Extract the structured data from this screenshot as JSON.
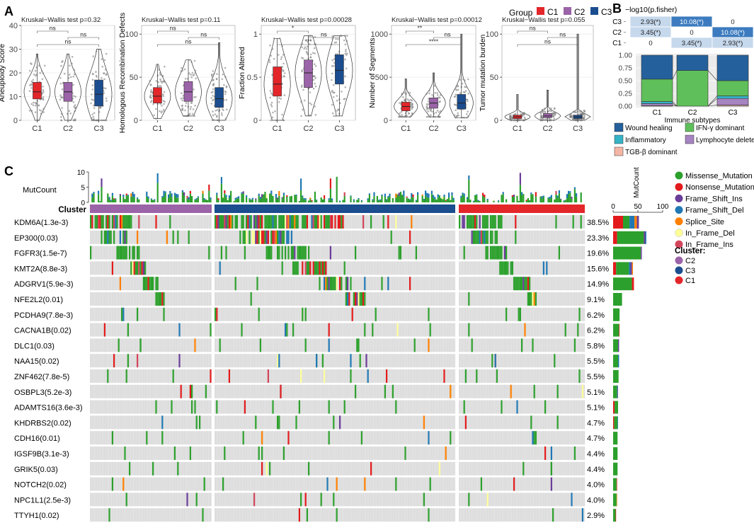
{
  "panel_labels": {
    "a": "A",
    "b": "B",
    "c": "C"
  },
  "colors": {
    "C1": "#e3262a",
    "C2": "#9b63a8",
    "C3": "#1b4d8f",
    "grid": "#ebebeb",
    "axis": "#333333",
    "missense": "#2ca02c",
    "nonsense": "#e31a1c",
    "fs_ins": "#6a3d9a",
    "fs_del": "#1f78b4",
    "splice": "#ff7f00",
    "inf_del": "#ffff99",
    "inf_ins": "#d3455b",
    "wound": "#24619c",
    "ifng": "#5fbf5a",
    "inflam": "#35b4c7",
    "lymph": "#a683c1",
    "tgb": "#f4b6a4",
    "cell_bg": "#d9d9d9"
  },
  "legend_group": {
    "title": "Group",
    "items": [
      "C1",
      "C2",
      "C3"
    ]
  },
  "chart_data": [
    {
      "type": "violin",
      "id": "aneuploidy",
      "title": "Kruskal−Wallis test p=0.32",
      "ylabel": "Aneuploidy Score",
      "categories": [
        "C1",
        "C2",
        "C3"
      ],
      "ylim": [
        0,
        40
      ],
      "yticks": [
        0,
        10,
        20,
        30,
        40
      ],
      "box": [
        {
          "q1": 9,
          "median": 12,
          "q3": 16
        },
        {
          "q1": 8,
          "median": 12,
          "q3": 16
        },
        {
          "q1": 6,
          "median": 11,
          "q3": 17
        }
      ],
      "whisker": [
        [
          0,
          28
        ],
        [
          0,
          28
        ],
        [
          0,
          30
        ]
      ],
      "significance": [
        "ns",
        "ns",
        "ns"
      ]
    },
    {
      "type": "violin",
      "id": "hrd",
      "title": "Kruskal−Wallis test p=0.11",
      "ylabel": "Homologous Recombination Defects",
      "categories": [
        "C1",
        "C2",
        "C3"
      ],
      "ylim": [
        0,
        110
      ],
      "yticks": [
        0,
        50,
        100
      ],
      "box": [
        {
          "q1": 20,
          "median": 28,
          "q3": 38
        },
        {
          "q1": 22,
          "median": 33,
          "q3": 45
        },
        {
          "q1": 15,
          "median": 25,
          "q3": 38
        }
      ],
      "whisker": [
        [
          2,
          65
        ],
        [
          5,
          70
        ],
        [
          0,
          90
        ]
      ],
      "significance": [
        "ns",
        "ns",
        "ns"
      ]
    },
    {
      "type": "violin",
      "id": "fraction",
      "title": "Kruskal−Wallis test p=0.00028",
      "ylabel": "Fraction Altered",
      "categories": [
        "C1",
        "C2",
        "C3"
      ],
      "ylim": [
        0,
        1.1
      ],
      "yticks": [
        0.0,
        0.5,
        1.0
      ],
      "box": [
        {
          "q1": 0.28,
          "median": 0.42,
          "q3": 0.62
        },
        {
          "q1": 0.38,
          "median": 0.55,
          "q3": 0.7
        },
        {
          "q1": 0.42,
          "median": 0.58,
          "q3": 0.76
        }
      ],
      "whisker": [
        [
          0.0,
          0.95
        ],
        [
          0.05,
          0.98
        ],
        [
          0.05,
          0.98
        ]
      ],
      "significance": [
        "*",
        "ns",
        "***"
      ]
    },
    {
      "type": "violin",
      "id": "segments",
      "title": "Kruskal−Wallis test p=0.00012",
      "ylabel": "Number of Segments",
      "categories": [
        "C1",
        "C2",
        "C3"
      ],
      "ylim": [
        0,
        1100
      ],
      "yticks": [
        0,
        500,
        1000
      ],
      "box": [
        {
          "q1": 110,
          "median": 160,
          "q3": 210
        },
        {
          "q1": 140,
          "median": 200,
          "q3": 260
        },
        {
          "q1": 130,
          "median": 200,
          "q3": 300
        }
      ],
      "whisker": [
        [
          40,
          480
        ],
        [
          40,
          550
        ],
        [
          30,
          1000
        ]
      ],
      "significance": [
        "**",
        "ns",
        "****"
      ]
    },
    {
      "type": "violin",
      "id": "tmb",
      "title": "Kruskal−Wallis test p=0.055",
      "ylabel": "Tumor mutation burden",
      "categories": [
        "C1",
        "C2",
        "C3"
      ],
      "ylim": [
        0,
        110
      ],
      "yticks": [
        0,
        50,
        100
      ],
      "box": [
        {
          "q1": 2,
          "median": 4,
          "q3": 6
        },
        {
          "q1": 3,
          "median": 5,
          "q3": 8
        },
        {
          "q1": 2,
          "median": 4,
          "q3": 6
        }
      ],
      "whisker": [
        [
          0,
          30
        ],
        [
          0,
          35
        ],
        [
          0,
          100
        ]
      ],
      "significance": [
        "ns",
        "ns",
        "ns"
      ]
    },
    {
      "type": "heatmap",
      "id": "fisher",
      "title": "−log10(p.fisher)",
      "rows": [
        "C3",
        "C2",
        "C1"
      ],
      "cells": [
        [
          "2.93(*)",
          "10.08(*)",
          "0"
        ],
        [
          "3.45(*)",
          "0",
          "10.08(*)"
        ],
        [
          "0",
          "3.45(*)",
          "2.93(*)"
        ]
      ],
      "values": [
        [
          2.93,
          10.08,
          0
        ],
        [
          3.45,
          0,
          10.08
        ],
        [
          0,
          3.45,
          2.93
        ]
      ]
    },
    {
      "type": "bar",
      "id": "immune",
      "stacked": true,
      "xlabel": "Immune subtypes",
      "categories": [
        "C1",
        "C2",
        "C3"
      ],
      "ylim": [
        0,
        1
      ],
      "yticks": [
        0.0,
        0.25,
        0.5,
        0.75,
        1.0
      ],
      "series": [
        {
          "name": "TGB-β dominant",
          "color_key": "tgb",
          "values": [
            0.01,
            0.0,
            0.02
          ]
        },
        {
          "name": "Lymphocyte deleted",
          "color_key": "lymph",
          "values": [
            0.04,
            0.0,
            0.13
          ]
        },
        {
          "name": "Inflammatory",
          "color_key": "inflam",
          "values": [
            0.04,
            0.0,
            0.05
          ]
        },
        {
          "name": "IFN-γ dominant",
          "color_key": "ifng",
          "values": [
            0.44,
            0.7,
            0.3
          ]
        },
        {
          "name": "Wound healing",
          "color_key": "wound",
          "values": [
            0.47,
            0.3,
            0.5
          ]
        }
      ],
      "legend": [
        "Wound healing",
        "IFN-γ dominant",
        "Inflammatory",
        "Lymphocyte deleted",
        "TGB-β dominant"
      ]
    },
    {
      "type": "oncoplot",
      "id": "oncoplot",
      "mutcount_label": "MutCount",
      "mutcount_ticks": [
        0,
        5,
        10
      ],
      "cluster_label": "Cluster",
      "right_axis_label": "MutCount",
      "right_ticks": [
        0,
        50,
        100
      ],
      "cluster_order": [
        "C2",
        "C3",
        "C1"
      ],
      "cluster_sizes": [
        76,
        142,
        72
      ],
      "genes": [
        {
          "label": "KDM6A(1.3e-3)",
          "pct": "38.5%",
          "bar": [
            {
              "t": "nonsense",
              "v": 20
            },
            {
              "t": "missense",
              "v": 13
            },
            {
              "t": "fs_del",
              "v": 10
            },
            {
              "t": "splice",
              "v": 5
            },
            {
              "t": "fs_ins",
              "v": 4
            }
          ]
        },
        {
          "label": "EP300(0.03)",
          "pct": "23.3%",
          "bar": [
            {
              "t": "nonsense",
              "v": 8
            },
            {
              "t": "missense",
              "v": 54
            },
            {
              "t": "fs_ins",
              "v": 3
            },
            {
              "t": "fs_del",
              "v": 2
            }
          ]
        },
        {
          "label": "FGFR3(1.5e-7)",
          "pct": "19.6%",
          "bar": [
            {
              "t": "missense",
              "v": 56
            },
            {
              "t": "fs_ins",
              "v": 2
            }
          ]
        },
        {
          "label": "KMT2A(8.8e-3)",
          "pct": "15.6%",
          "bar": [
            {
              "t": "nonsense",
              "v": 6
            },
            {
              "t": "missense",
              "v": 26
            },
            {
              "t": "fs_del",
              "v": 3
            },
            {
              "t": "fs_ins",
              "v": 3
            },
            {
              "t": "splice",
              "v": 2
            }
          ]
        },
        {
          "label": "ADGRV1(5.9e-3)",
          "pct": "14.9%",
          "bar": [
            {
              "t": "missense",
              "v": 38
            },
            {
              "t": "nonsense",
              "v": 4
            }
          ]
        },
        {
          "label": "NFE2L2(0.01)",
          "pct": "9.1%",
          "bar": [
            {
              "t": "missense",
              "v": 18
            }
          ]
        },
        {
          "label": "PCDHA9(7.8e-3)",
          "pct": "6.2%",
          "bar": [
            {
              "t": "missense",
              "v": 13
            }
          ]
        },
        {
          "label": "CACNA1B(0.02)",
          "pct": "6.2%",
          "bar": [
            {
              "t": "missense",
              "v": 12
            },
            {
              "t": "nonsense",
              "v": 1
            }
          ]
        },
        {
          "label": "DLC1(0.03)",
          "pct": "5.8%",
          "bar": [
            {
              "t": "missense",
              "v": 10
            },
            {
              "t": "fs_ins",
              "v": 2
            }
          ]
        },
        {
          "label": "NAA15(0.02)",
          "pct": "5.5%",
          "bar": [
            {
              "t": "missense",
              "v": 10
            },
            {
              "t": "fs_del",
              "v": 2
            }
          ]
        },
        {
          "label": "ZNF462(7.8e-5)",
          "pct": "5.5%",
          "bar": [
            {
              "t": "missense",
              "v": 11
            }
          ]
        },
        {
          "label": "OSBPL3(5.2e-3)",
          "pct": "5.1%",
          "bar": [
            {
              "t": "missense",
              "v": 8
            },
            {
              "t": "fs_del",
              "v": 1
            },
            {
              "t": "fs_ins",
              "v": 1
            }
          ]
        },
        {
          "label": "ADAMTS16(3.6e-3)",
          "pct": "5.1%",
          "bar": [
            {
              "t": "nonsense",
              "v": 3
            },
            {
              "t": "missense",
              "v": 7
            }
          ]
        },
        {
          "label": "KHDRBS2(0.02)",
          "pct": "4.7%",
          "bar": [
            {
              "t": "nonsense",
              "v": 2
            },
            {
              "t": "missense",
              "v": 7
            },
            {
              "t": "fs_del",
              "v": 1
            }
          ]
        },
        {
          "label": "CDH16(0.01)",
          "pct": "4.7%",
          "bar": [
            {
              "t": "missense",
              "v": 9
            }
          ]
        },
        {
          "label": "IGSF9B(3.1e-3)",
          "pct": "4.4%",
          "bar": [
            {
              "t": "missense",
              "v": 9
            }
          ]
        },
        {
          "label": "GRIK5(0.03)",
          "pct": "4.4%",
          "bar": [
            {
              "t": "missense",
              "v": 9
            }
          ]
        },
        {
          "label": "NOTCH2(0.02)",
          "pct": "4.0%",
          "bar": [
            {
              "t": "missense",
              "v": 7
            },
            {
              "t": "nonsense",
              "v": 1
            }
          ]
        },
        {
          "label": "NPC1L1(2.5e-3)",
          "pct": "4.0%",
          "bar": [
            {
              "t": "missense",
              "v": 7
            },
            {
              "t": "splice",
              "v": 1
            }
          ]
        },
        {
          "label": "TTYH1(0.02)",
          "pct": "2.9%",
          "bar": [
            {
              "t": "missense",
              "v": 5
            },
            {
              "t": "nonsense",
              "v": 1
            }
          ]
        }
      ],
      "mutation_legend": [
        {
          "key": "missense",
          "label": "Missense_Mutation"
        },
        {
          "key": "nonsense",
          "label": "Nonsense_Mutation"
        },
        {
          "key": "fs_ins",
          "label": "Frame_Shift_Ins"
        },
        {
          "key": "fs_del",
          "label": "Frame_Shift_Del"
        },
        {
          "key": "splice",
          "label": "Splice_Site"
        },
        {
          "key": "inf_del",
          "label": "In_Frame_Del"
        },
        {
          "key": "inf_ins",
          "label": "In_Frame_Ins"
        }
      ],
      "cluster_legend": {
        "title": "Cluster:",
        "items": [
          "C2",
          "C3",
          "C1"
        ]
      }
    }
  ]
}
